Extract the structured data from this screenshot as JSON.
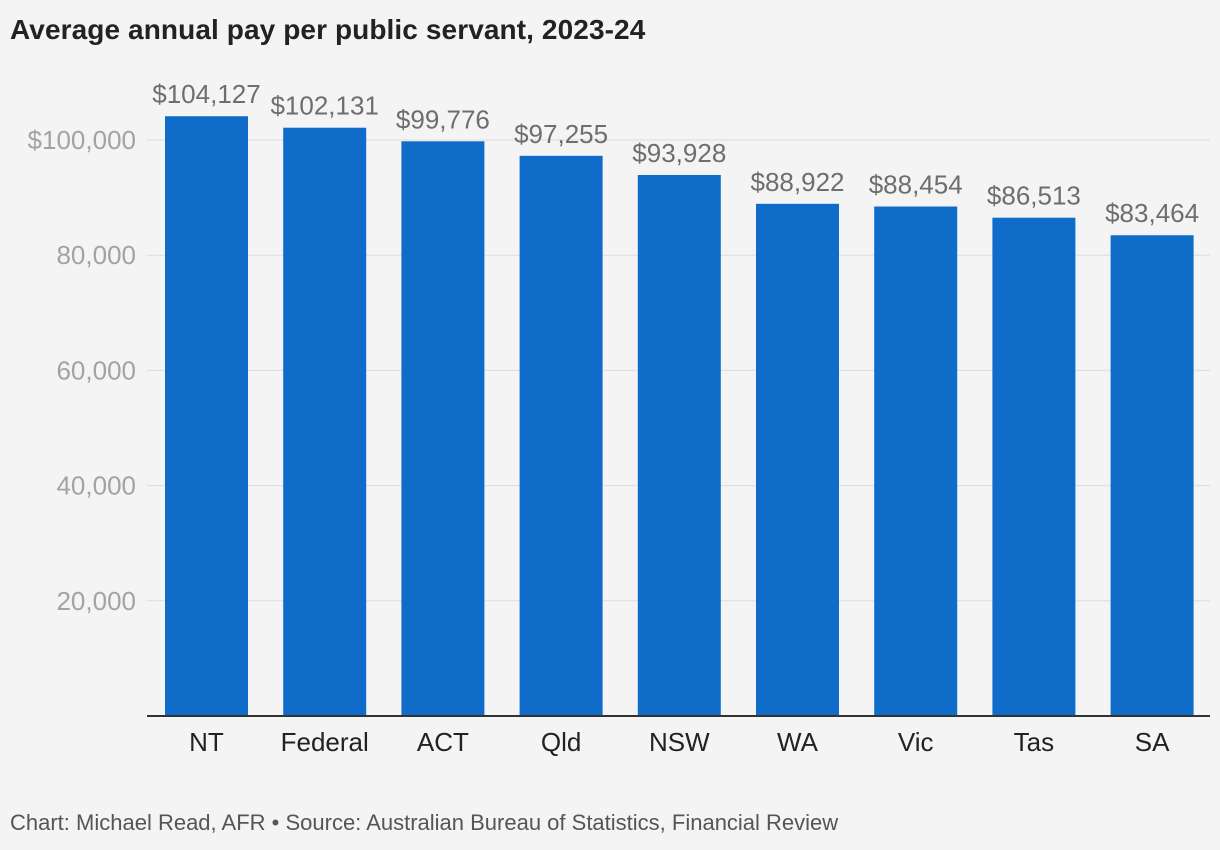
{
  "header": {
    "title": "Average annual pay per public servant, 2023-24"
  },
  "footer": {
    "credit": "Chart: Michael Read, AFR • Source: Australian Bureau of Statistics, Financial Review"
  },
  "colors": {
    "bar": "#0f6dc9",
    "background": "#f4f4f4",
    "grid": "#dcdcdc",
    "axis": "#333333"
  },
  "chart_data": {
    "type": "bar",
    "title": "Average annual pay per public servant, 2023-24",
    "xlabel": "",
    "ylabel": "",
    "categories": [
      "NT",
      "Federal",
      "ACT",
      "Qld",
      "NSW",
      "WA",
      "Vic",
      "Tas",
      "SA"
    ],
    "values": [
      104127,
      102131,
      99776,
      97255,
      93928,
      88922,
      88454,
      86513,
      83464
    ],
    "data_labels": [
      "$104,127",
      "$102,131",
      "$99,776",
      "$97,255",
      "$93,928",
      "$88,922",
      "$88,454",
      "$86,513",
      "$83,464"
    ],
    "ylim": [
      0,
      100000
    ],
    "yticks": [
      20000,
      40000,
      60000,
      80000,
      100000
    ],
    "ytick_labels": [
      "20,000",
      "40,000",
      "60,000",
      "80,000",
      "$100,000"
    ],
    "grid": true,
    "legend": "none"
  }
}
